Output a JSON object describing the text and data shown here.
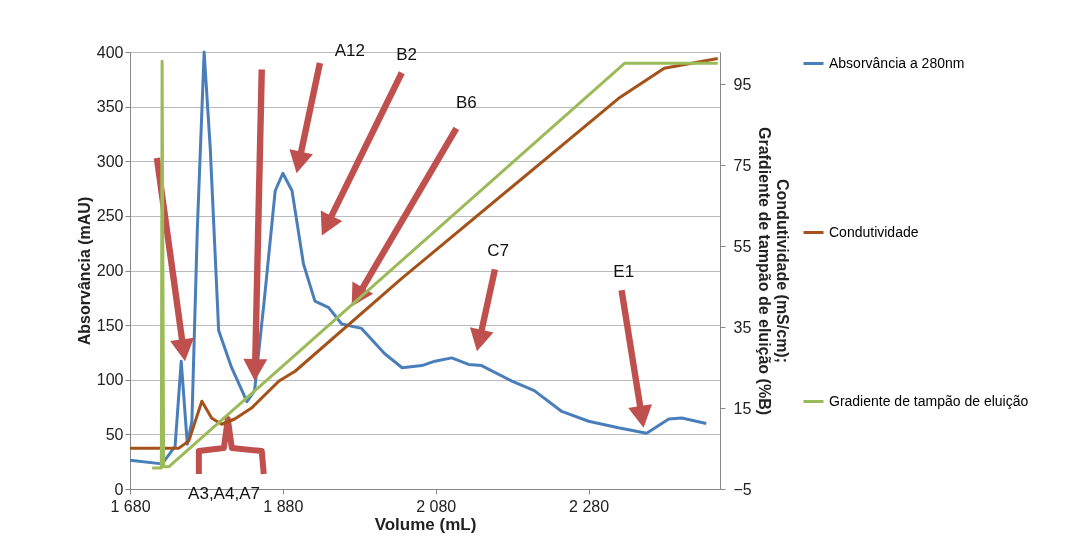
{
  "chart_data": {
    "type": "line",
    "xlabel": "Volume (mL)",
    "ylabel": "Absorvância (mAU)",
    "y2label": "Condutividade (mS/cm); Grafdiente de tampão de eluição (%B)",
    "xlim": [
      1680,
      2452
    ],
    "xticks": [
      {
        "value": 1680,
        "label": "1 680"
      },
      {
        "value": 1880,
        "label": "1 880"
      },
      {
        "value": 2080,
        "label": "2 080"
      },
      {
        "value": 2280,
        "label": "2 280"
      }
    ],
    "ylim": [
      0,
      400
    ],
    "yticks": [
      0,
      50,
      100,
      150,
      200,
      250,
      300,
      350,
      400
    ],
    "y2lim": [
      -5,
      103
    ],
    "y2ticks": [
      -5,
      15,
      35,
      55,
      75,
      95
    ],
    "grid": "y",
    "legend": "right",
    "line_style": "solid",
    "series": [
      {
        "name": "Absorvância a 280nm",
        "color": "#4a7ebb",
        "x": [
          1680,
          1683,
          1722,
          1739,
          1747,
          1755,
          1761,
          1768,
          1777,
          1785,
          1796,
          1813,
          1833,
          1843,
          1856,
          1870,
          1880,
          1892,
          1907,
          1922,
          1940,
          1957,
          1983,
          2013,
          2036,
          2062,
          2079,
          2101,
          2123,
          2140,
          2179,
          2209,
          2245,
          2280,
          2319,
          2356,
          2385,
          2402,
          2434
        ],
        "values": [
          26,
          26,
          23,
          39,
          117,
          41,
          62,
          236,
          400,
          312,
          145,
          111,
          80,
          90,
          175,
          273,
          289,
          273,
          206,
          172,
          166,
          151,
          147,
          124,
          111,
          113,
          117,
          120,
          114,
          113,
          99,
          90,
          71,
          62,
          56,
          51,
          64,
          65,
          60
        ]
      },
      {
        "name": "Condutividade",
        "color": "#a5521a",
        "axis": "y2",
        "x": [
          1680,
          1744,
          1757,
          1774,
          1787,
          1800,
          1817,
          1839,
          1875,
          1896,
          2036,
          2319,
          2379,
          2449
        ],
        "values": [
          5.1,
          5.1,
          6.9,
          16.7,
          12.5,
          11,
          12.3,
          15,
          21.7,
          24.1,
          47.1,
          91.5,
          99,
          101.4
        ]
      },
      {
        "name": "Gradiente de tampão de eluição",
        "color": "#9bbb59",
        "axis": "y2",
        "x": [
          1709,
          1721,
          1722,
          1724,
          1731,
          2327,
          2449
        ],
        "values": [
          0.2,
          0.2,
          100.7,
          0.5,
          0.5,
          100.2,
          100.2
        ]
      }
    ],
    "annotations": [
      "A3,A4,A7",
      "A12",
      "B2",
      "B6",
      "C7",
      "E1"
    ]
  }
}
